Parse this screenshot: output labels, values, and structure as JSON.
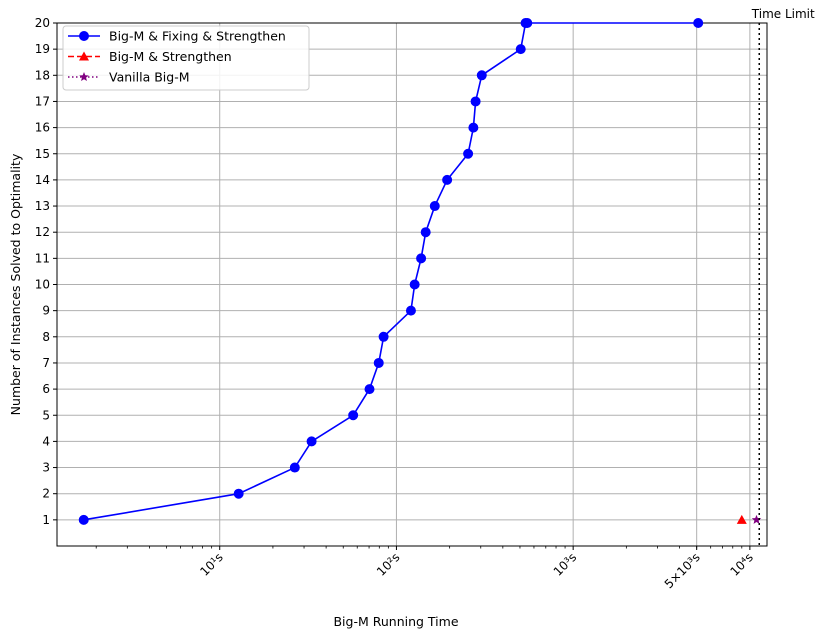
{
  "chart_data": {
    "type": "line",
    "xscale": "log",
    "xlabel": "Big-M Running Time",
    "ylabel": "Number of Instances Solved to Optimality",
    "xlim": [
      1.2,
      12500
    ],
    "ylim": [
      0,
      20
    ],
    "yticks": [
      1,
      2,
      3,
      4,
      5,
      6,
      7,
      8,
      9,
      10,
      11,
      12,
      13,
      14,
      15,
      16,
      17,
      18,
      19,
      20
    ],
    "xticks": [
      {
        "value": 10,
        "label": "10¹s"
      },
      {
        "value": 100,
        "label": "10²s"
      },
      {
        "value": 1000,
        "label": "10³s"
      },
      {
        "value": 5000,
        "label": "5×10³s"
      },
      {
        "value": 10000,
        "label": "10⁴s"
      }
    ],
    "grid": true,
    "legend_position": "top-left",
    "time_limit": {
      "value": 11300,
      "label": "Time Limit",
      "color": "#000000"
    },
    "series": [
      {
        "name": "Big-M & Fixing & Strengthen",
        "color": "#0000ff",
        "marker": "circle",
        "linestyle": "solid",
        "x": [
          1.7,
          12.8,
          26.6,
          33.1,
          56.9,
          70.4,
          79.4,
          84.6,
          120.8,
          126.8,
          137.9,
          146.4,
          164.8,
          193.6,
          254.4,
          272.5,
          280.5,
          304.0,
          505.0,
          538.0,
          550.0,
          5100.0
        ],
        "y": [
          1,
          2,
          3,
          4,
          5,
          6,
          7,
          8,
          9,
          10,
          11,
          12,
          13,
          14,
          15,
          16,
          17,
          18,
          19,
          20,
          20,
          20
        ]
      },
      {
        "name": "Big-M & Strengthen",
        "color": "#ff0000",
        "marker": "triangle",
        "linestyle": "dashed",
        "x": [
          9000
        ],
        "y": [
          1
        ]
      },
      {
        "name": "Vanilla Big-M",
        "color": "#800080",
        "marker": "star",
        "linestyle": "dotted",
        "x": [
          10900
        ],
        "y": [
          1
        ]
      }
    ]
  }
}
